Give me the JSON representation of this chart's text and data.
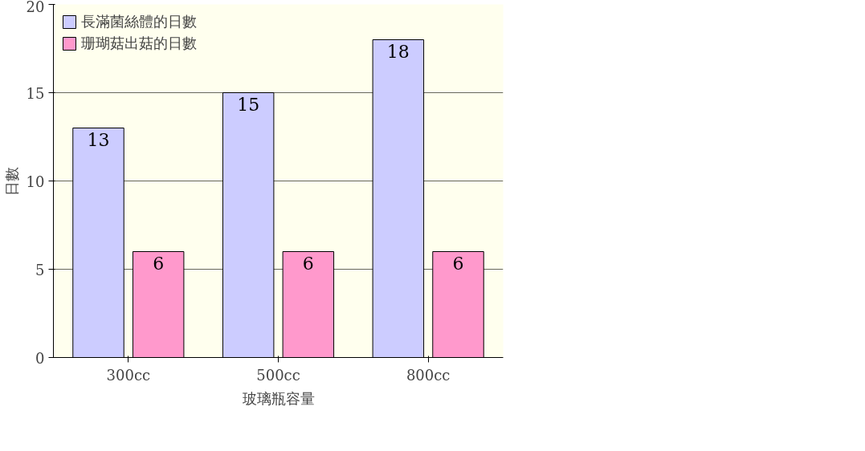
{
  "chart_data": {
    "type": "bar",
    "xlabel": "玻璃瓶容量",
    "ylabel": "日數",
    "categories": [
      "300cc",
      "500cc",
      "800cc"
    ],
    "series": [
      {
        "name": "長滿菌絲體的日數",
        "color": "#ccccff",
        "values": [
          13,
          15,
          18
        ]
      },
      {
        "name": "珊瑚菇出菇的日數",
        "color": "#ff99cc",
        "values": [
          6,
          6,
          6
        ]
      }
    ],
    "ylim": [
      0,
      20
    ],
    "yticks": [
      0,
      5,
      10,
      15,
      20
    ],
    "grid": "y",
    "legend": "top left",
    "data_labels": true
  }
}
